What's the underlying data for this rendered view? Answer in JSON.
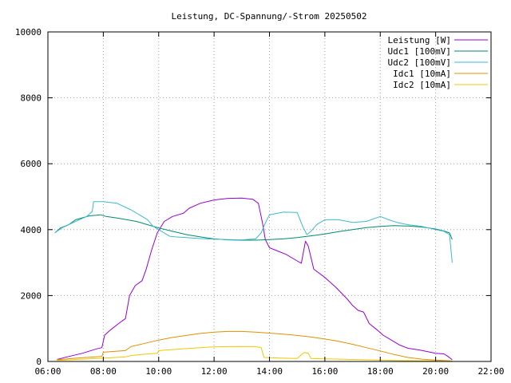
{
  "chart_data": {
    "type": "line",
    "title": "Leistung, DC-Spannung/-Strom 20250502",
    "xlabel": "",
    "ylabel": "",
    "x_range_hours": [
      6,
      22
    ],
    "ylim": [
      0,
      10000
    ],
    "y_ticks": [
      0,
      2000,
      4000,
      6000,
      8000,
      10000
    ],
    "y_tick_labels": [
      "0",
      "2000",
      "4000",
      "6000",
      "8000",
      "10000"
    ],
    "x_ticks_hours": [
      6,
      8,
      10,
      12,
      14,
      16,
      18,
      20,
      22
    ],
    "x_tick_labels": [
      "06:00",
      "08:00",
      "10:00",
      "12:00",
      "14:00",
      "16:00",
      "18:00",
      "20:00",
      "22:00"
    ],
    "grid": true,
    "legend_position": "top-right",
    "series": [
      {
        "name": "Leistung [W]",
        "color": "#9400d3",
        "points": [
          [
            6.33,
            60
          ],
          [
            6.75,
            150
          ],
          [
            7.25,
            250
          ],
          [
            7.75,
            380
          ],
          [
            7.95,
            420
          ],
          [
            8.05,
            800
          ],
          [
            8.25,
            950
          ],
          [
            8.55,
            1150
          ],
          [
            8.8,
            1300
          ],
          [
            8.95,
            2000
          ],
          [
            9.15,
            2300
          ],
          [
            9.4,
            2450
          ],
          [
            9.55,
            2800
          ],
          [
            9.75,
            3400
          ],
          [
            9.95,
            3900
          ],
          [
            10.2,
            4250
          ],
          [
            10.5,
            4400
          ],
          [
            10.9,
            4500
          ],
          [
            11.1,
            4650
          ],
          [
            11.5,
            4800
          ],
          [
            12.0,
            4900
          ],
          [
            12.5,
            4950
          ],
          [
            13.0,
            4960
          ],
          [
            13.4,
            4920
          ],
          [
            13.6,
            4800
          ],
          [
            13.75,
            4200
          ],
          [
            13.85,
            3700
          ],
          [
            14.0,
            3450
          ],
          [
            14.3,
            3350
          ],
          [
            14.6,
            3250
          ],
          [
            15.0,
            3050
          ],
          [
            15.15,
            2980
          ],
          [
            15.3,
            3650
          ],
          [
            15.4,
            3500
          ],
          [
            15.6,
            2800
          ],
          [
            16.0,
            2550
          ],
          [
            16.4,
            2250
          ],
          [
            16.8,
            1900
          ],
          [
            17.0,
            1700
          ],
          [
            17.2,
            1550
          ],
          [
            17.4,
            1500
          ],
          [
            17.6,
            1150
          ],
          [
            17.9,
            950
          ],
          [
            18.1,
            800
          ],
          [
            18.4,
            650
          ],
          [
            18.7,
            500
          ],
          [
            19.0,
            400
          ],
          [
            19.4,
            350
          ],
          [
            19.7,
            300
          ],
          [
            20.0,
            250
          ],
          [
            20.3,
            230
          ],
          [
            20.45,
            150
          ],
          [
            20.6,
            50
          ]
        ]
      },
      {
        "name": "Udc1 [100mV]",
        "color": "#008b6b",
        "points": [
          [
            6.25,
            3900
          ],
          [
            6.45,
            4050
          ],
          [
            6.75,
            4150
          ],
          [
            7.0,
            4300
          ],
          [
            7.5,
            4420
          ],
          [
            7.9,
            4450
          ],
          [
            8.1,
            4400
          ],
          [
            8.5,
            4350
          ],
          [
            8.85,
            4300
          ],
          [
            9.2,
            4250
          ],
          [
            9.6,
            4150
          ],
          [
            10.0,
            4050
          ],
          [
            10.5,
            3950
          ],
          [
            11.0,
            3850
          ],
          [
            11.5,
            3780
          ],
          [
            12.0,
            3720
          ],
          [
            12.5,
            3690
          ],
          [
            13.0,
            3680
          ],
          [
            13.5,
            3680
          ],
          [
            14.0,
            3700
          ],
          [
            14.5,
            3720
          ],
          [
            15.0,
            3760
          ],
          [
            15.5,
            3810
          ],
          [
            16.0,
            3870
          ],
          [
            16.5,
            3940
          ],
          [
            17.0,
            4000
          ],
          [
            17.5,
            4060
          ],
          [
            18.0,
            4100
          ],
          [
            18.5,
            4120
          ],
          [
            19.0,
            4110
          ],
          [
            19.5,
            4080
          ],
          [
            20.0,
            4020
          ],
          [
            20.3,
            3960
          ],
          [
            20.5,
            3900
          ],
          [
            20.6,
            3700
          ]
        ]
      },
      {
        "name": "Udc2 [100mV]",
        "color": "#3fb8d0",
        "points": [
          [
            6.25,
            3900
          ],
          [
            6.5,
            4050
          ],
          [
            7.0,
            4250
          ],
          [
            7.4,
            4400
          ],
          [
            7.6,
            4550
          ],
          [
            7.65,
            4850
          ],
          [
            8.0,
            4850
          ],
          [
            8.5,
            4800
          ],
          [
            9.0,
            4600
          ],
          [
            9.3,
            4450
          ],
          [
            9.6,
            4300
          ],
          [
            9.8,
            4100
          ],
          [
            10.0,
            4000
          ],
          [
            10.2,
            3900
          ],
          [
            10.4,
            3800
          ],
          [
            10.6,
            3780
          ],
          [
            11.0,
            3760
          ],
          [
            11.5,
            3730
          ],
          [
            12.0,
            3710
          ],
          [
            12.5,
            3700
          ],
          [
            13.0,
            3690
          ],
          [
            13.5,
            3720
          ],
          [
            13.7,
            3900
          ],
          [
            13.85,
            4200
          ],
          [
            14.0,
            4450
          ],
          [
            14.5,
            4530
          ],
          [
            15.0,
            4520
          ],
          [
            15.2,
            4100
          ],
          [
            15.35,
            3850
          ],
          [
            15.5,
            3950
          ],
          [
            15.7,
            4150
          ],
          [
            16.0,
            4300
          ],
          [
            16.5,
            4300
          ],
          [
            17.0,
            4220
          ],
          [
            17.5,
            4250
          ],
          [
            18.0,
            4400
          ],
          [
            18.3,
            4300
          ],
          [
            18.6,
            4220
          ],
          [
            19.0,
            4150
          ],
          [
            19.5,
            4100
          ],
          [
            20.0,
            4000
          ],
          [
            20.3,
            3950
          ],
          [
            20.5,
            3850
          ],
          [
            20.6,
            3000
          ]
        ]
      },
      {
        "name": "Idc1 [10mA]",
        "color": "#e09000",
        "points": [
          [
            6.33,
            50
          ],
          [
            7.0,
            100
          ],
          [
            7.95,
            150
          ],
          [
            8.0,
            280
          ],
          [
            8.8,
            330
          ],
          [
            9.0,
            450
          ],
          [
            9.5,
            550
          ],
          [
            10.0,
            650
          ],
          [
            10.5,
            730
          ],
          [
            11.0,
            790
          ],
          [
            11.5,
            850
          ],
          [
            12.0,
            890
          ],
          [
            12.5,
            910
          ],
          [
            13.0,
            910
          ],
          [
            13.5,
            890
          ],
          [
            14.0,
            860
          ],
          [
            14.5,
            830
          ],
          [
            15.0,
            790
          ],
          [
            15.5,
            740
          ],
          [
            16.0,
            680
          ],
          [
            16.5,
            610
          ],
          [
            17.0,
            520
          ],
          [
            17.5,
            420
          ],
          [
            18.0,
            320
          ],
          [
            18.5,
            210
          ],
          [
            19.0,
            120
          ],
          [
            19.5,
            70
          ],
          [
            20.0,
            40
          ],
          [
            20.6,
            15
          ]
        ]
      },
      {
        "name": "Idc2 [10mA]",
        "color": "#f0c800",
        "points": [
          [
            6.33,
            30
          ],
          [
            7.0,
            60
          ],
          [
            8.0,
            100
          ],
          [
            8.8,
            140
          ],
          [
            9.0,
            180
          ],
          [
            9.5,
            220
          ],
          [
            9.95,
            250
          ],
          [
            10.0,
            330
          ],
          [
            10.5,
            360
          ],
          [
            11.0,
            390
          ],
          [
            11.5,
            420
          ],
          [
            12.0,
            440
          ],
          [
            12.5,
            450
          ],
          [
            13.0,
            455
          ],
          [
            13.5,
            450
          ],
          [
            13.7,
            420
          ],
          [
            13.8,
            120
          ],
          [
            14.5,
            100
          ],
          [
            15.0,
            90
          ],
          [
            15.25,
            270
          ],
          [
            15.4,
            250
          ],
          [
            15.5,
            90
          ],
          [
            16.0,
            80
          ],
          [
            16.5,
            70
          ],
          [
            17.0,
            60
          ],
          [
            17.5,
            50
          ],
          [
            18.0,
            40
          ],
          [
            18.5,
            30
          ],
          [
            19.0,
            25
          ],
          [
            19.5,
            20
          ],
          [
            20.0,
            15
          ],
          [
            20.6,
            10
          ]
        ]
      }
    ]
  }
}
